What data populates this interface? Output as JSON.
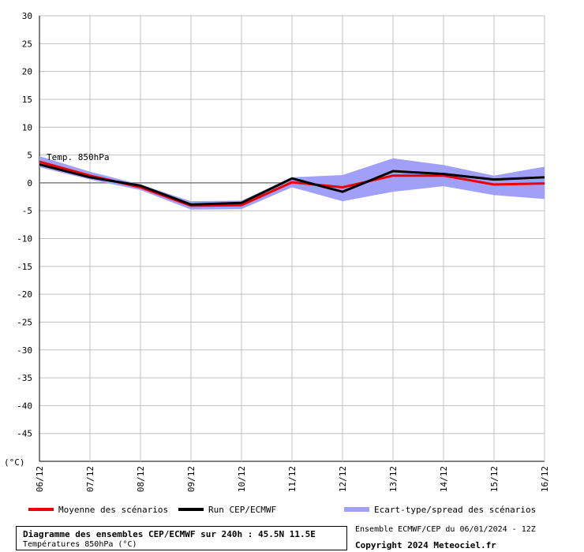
{
  "chart_data": {
    "type": "line",
    "unit_label": "(°C)",
    "annotation": "Temp. 850hPa",
    "categories": [
      "06/12",
      "07/12",
      "08/12",
      "09/12",
      "10/12",
      "11/12",
      "12/12",
      "13/12",
      "14/12",
      "15/12",
      "16/12"
    ],
    "yticks": [
      30,
      25,
      20,
      15,
      10,
      5,
      0,
      -5,
      -10,
      -15,
      -20,
      -25,
      -30,
      -35,
      -40,
      -45
    ],
    "ylim": [
      -50,
      30
    ],
    "grid": true,
    "series": [
      {
        "name": "Moyenne des scénarios",
        "color": "#ee0000",
        "values": [
          3.8,
          1.3,
          -0.8,
          -4.1,
          -4.0,
          0.1,
          -0.8,
          1.3,
          1.3,
          -0.3,
          -0.1
        ]
      },
      {
        "name": "Run CEP/ECMWF",
        "color": "#000000",
        "values": [
          3.3,
          1.0,
          -0.5,
          -3.9,
          -3.6,
          0.8,
          -1.6,
          2.1,
          1.6,
          0.6,
          1.0
        ]
      }
    ],
    "band": {
      "name": "Ecart-type/spread des scénarios",
      "color": "#a0a0f8",
      "upper": [
        4.8,
        2.0,
        -0.3,
        -3.3,
        -3.2,
        1.0,
        1.4,
        4.4,
        3.2,
        1.3,
        2.9
      ],
      "lower": [
        2.8,
        0.6,
        -1.3,
        -4.8,
        -4.7,
        -0.8,
        -3.3,
        -1.6,
        -0.6,
        -2.2,
        -2.9
      ]
    }
  },
  "legend": {
    "mean_label": "Moyenne des scénarios",
    "run_label": "Run CEP/ECMWF",
    "spread_label": "Ecart-type/spread des scénarios"
  },
  "title": {
    "main": "Diagramme des ensembles CEP/ECMWF sur 240h : 45.5N 11.5E",
    "sub": "Températures 850hPa (°C)"
  },
  "footer": {
    "run_info": "Ensemble ECMWF/CEP du 06/01/2024 - 12Z",
    "copyright": "Copyright 2024 Meteociel.fr"
  },
  "colors": {
    "grid": "#c0c0c0",
    "mean": "#ee0000",
    "run": "#000000",
    "spread": "#a0a0f8",
    "zero_line": "#808080"
  }
}
